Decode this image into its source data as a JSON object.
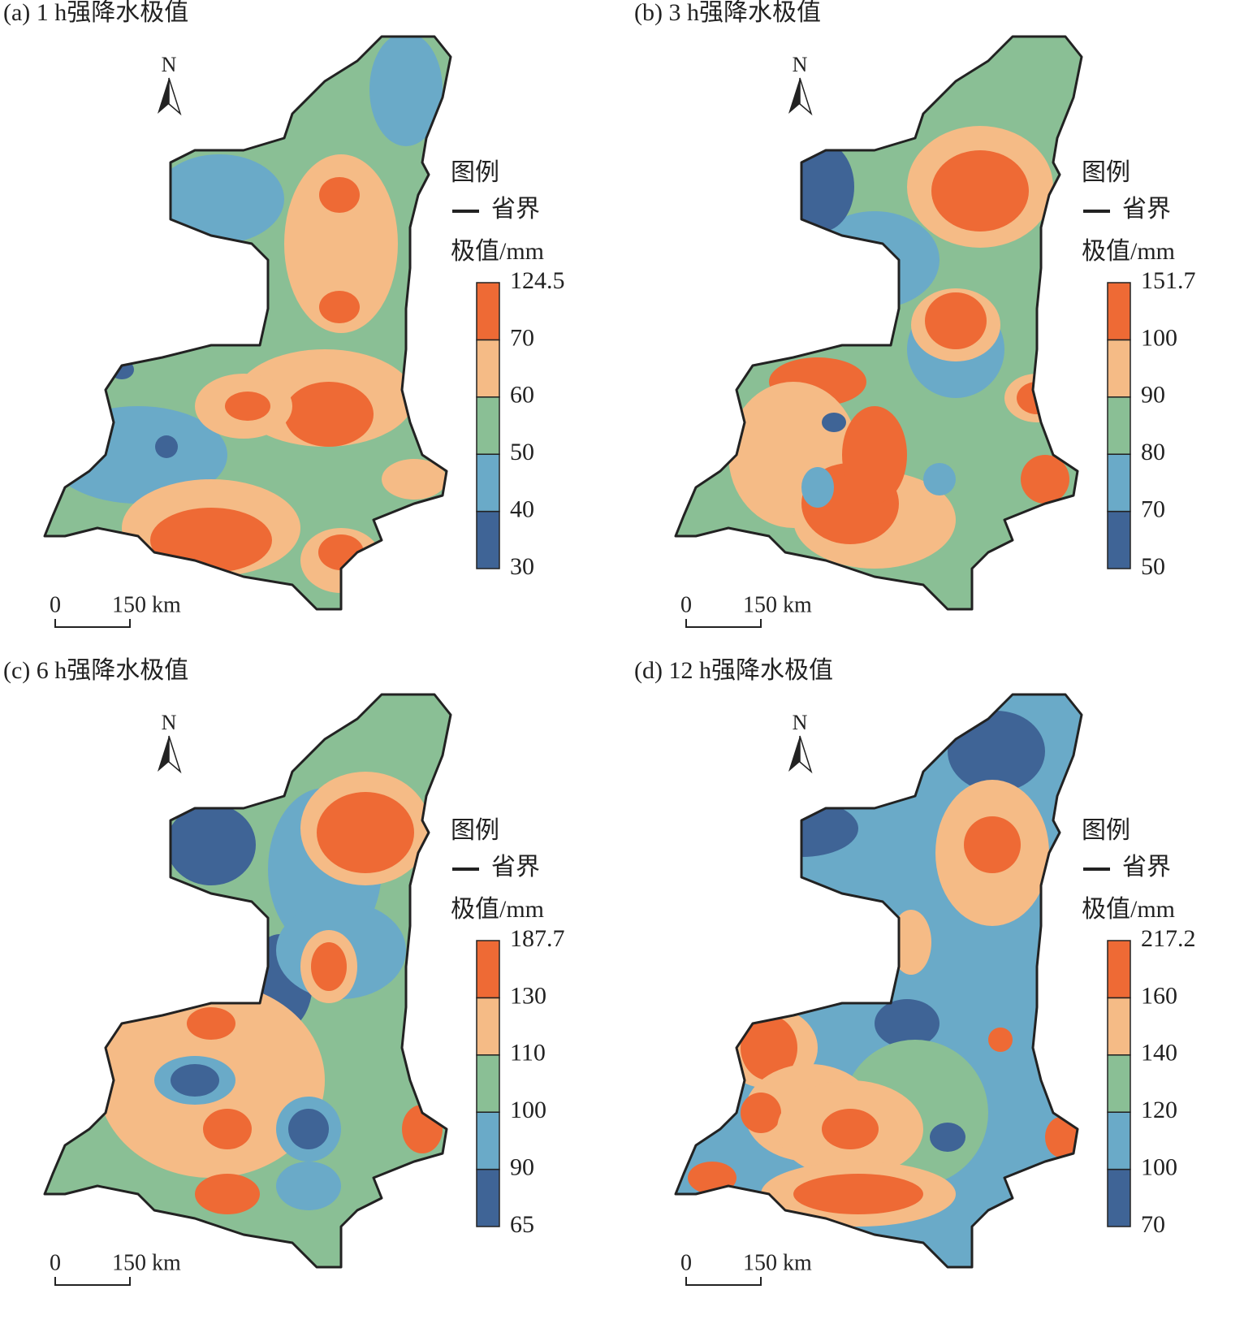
{
  "panels": [
    {
      "title": "(a) 1 h强降水极值",
      "north": "N",
      "legend_title": "图例",
      "boundary_label": "省界",
      "unit_label": "极值/mm",
      "breaks": [
        30,
        40,
        50,
        60,
        70,
        124.5
      ],
      "colors": [
        "#3f6496",
        "#6aaac8",
        "#8abf95",
        "#f5bb86",
        "#ee6a35"
      ],
      "scale_labels": [
        "0",
        "150 km"
      ]
    },
    {
      "title": "(b) 3 h强降水极值",
      "north": "N",
      "legend_title": "图例",
      "boundary_label": "省界",
      "unit_label": "极值/mm",
      "breaks": [
        50,
        70,
        80,
        90,
        100,
        151.7
      ],
      "colors": [
        "#3f6496",
        "#6aaac8",
        "#8abf95",
        "#f5bb86",
        "#ee6a35"
      ],
      "scale_labels": [
        "0",
        "150 km"
      ]
    },
    {
      "title": "(c) 6 h强降水极值",
      "north": "N",
      "legend_title": "图例",
      "boundary_label": "省界",
      "unit_label": "极值/mm",
      "breaks": [
        65,
        90,
        100,
        110,
        130,
        187.7
      ],
      "colors": [
        "#3f6496",
        "#6aaac8",
        "#8abf95",
        "#f5bb86",
        "#ee6a35"
      ],
      "scale_labels": [
        "0",
        "150 km"
      ]
    },
    {
      "title": "(d) 12 h强降水极值",
      "north": "N",
      "legend_title": "图例",
      "boundary_label": "省界",
      "unit_label": "极值/mm",
      "breaks": [
        70,
        100,
        120,
        140,
        160,
        217.2
      ],
      "colors": [
        "#3f6496",
        "#6aaac8",
        "#8abf95",
        "#f5bb86",
        "#ee6a35"
      ],
      "scale_labels": [
        "0",
        "150 km"
      ]
    }
  ]
}
